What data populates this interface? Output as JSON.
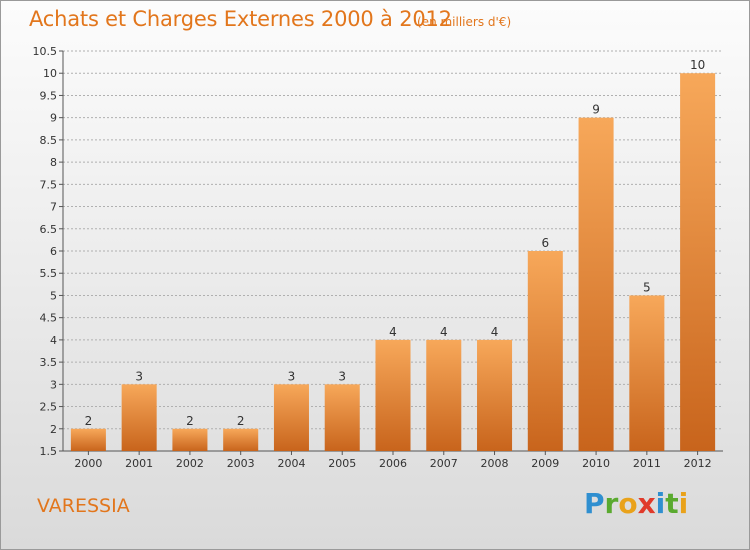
{
  "title": "Achats et Charges Externes 2000 à 2012",
  "subtitle": "(en milliers d'€)",
  "place": "VARESSIA",
  "logo": {
    "text": "Proxiti",
    "letters": [
      {
        "ch": "P",
        "color": "#2f8fd0"
      },
      {
        "ch": "r",
        "color": "#5aaa2f"
      },
      {
        "ch": "o",
        "color": "#e9a21a"
      },
      {
        "ch": "x",
        "color": "#e03a2a"
      },
      {
        "ch": "i",
        "color": "#2f8fd0"
      },
      {
        "ch": "t",
        "color": "#5aaa2f"
      },
      {
        "ch": "i",
        "color": "#e9a21a"
      }
    ]
  },
  "colors": {
    "accent": "#e2761c",
    "bar_top": "#f7a85a",
    "bar_bottom": "#c8641c",
    "grid": "#b0b0b0",
    "axis_text": "#333333"
  },
  "chart_data": {
    "type": "bar",
    "categories": [
      "2000",
      "2001",
      "2002",
      "2003",
      "2004",
      "2005",
      "2006",
      "2007",
      "2008",
      "2009",
      "2010",
      "2011",
      "2012"
    ],
    "values": [
      2,
      3,
      2,
      2,
      3,
      3,
      4,
      4,
      4,
      6,
      9,
      5,
      10
    ],
    "data_labels": [
      "2",
      "3",
      "2",
      "2",
      "3",
      "3",
      "4",
      "4",
      "4",
      "6",
      "9",
      "5",
      "10"
    ],
    "ylim": [
      1.5,
      10.5
    ],
    "yticks": [
      1.5,
      2,
      2.5,
      3,
      3.5,
      4,
      4.5,
      5,
      5.5,
      6,
      6.5,
      7,
      7.5,
      8,
      8.5,
      9,
      9.5,
      10,
      10.5
    ],
    "ytick_labels": [
      "1.5",
      "2",
      "2.5",
      "3",
      "3.5",
      "4",
      "4.5",
      "5",
      "5.5",
      "6",
      "6.5",
      "7",
      "7.5",
      "8",
      "8.5",
      "9",
      "9.5",
      "10",
      "10.5"
    ],
    "grid": true,
    "xlabel": "",
    "ylabel": ""
  }
}
